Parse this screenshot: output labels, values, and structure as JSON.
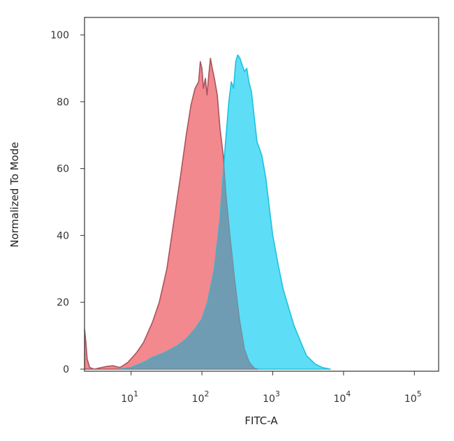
{
  "chart_data": {
    "type": "area",
    "xlabel": "FITC-A",
    "ylabel": "Normalized To Mode",
    "x_scale": "log",
    "xlim": [
      2.2,
      220000
    ],
    "ylim": [
      0,
      100
    ],
    "x_ticks": [
      {
        "base": "10",
        "exp": "1",
        "value": 10
      },
      {
        "base": "10",
        "exp": "2",
        "value": 100
      },
      {
        "base": "10",
        "exp": "3",
        "value": 1000
      },
      {
        "base": "10",
        "exp": "4",
        "value": 10000
      },
      {
        "base": "10",
        "exp": "5",
        "value": 100000
      }
    ],
    "y_ticks": [
      {
        "label": "0",
        "value": 0
      },
      {
        "label": "20",
        "value": 20
      },
      {
        "label": "40",
        "value": 40
      },
      {
        "label": "60",
        "value": 60
      },
      {
        "label": "80",
        "value": 80
      },
      {
        "label": "100",
        "value": 100
      }
    ],
    "grid": false,
    "series": [
      {
        "color": "#f07f85",
        "stroke": "#c9464c",
        "points": [
          [
            2.2,
            12
          ],
          [
            2.3,
            8
          ],
          [
            2.4,
            3
          ],
          [
            2.6,
            0.5
          ],
          [
            3,
            0
          ],
          [
            4.5,
            0.8
          ],
          [
            5.5,
            1
          ],
          [
            7,
            0.5
          ],
          [
            9,
            2
          ],
          [
            12,
            5
          ],
          [
            15,
            8
          ],
          [
            20,
            14
          ],
          [
            25,
            20
          ],
          [
            32,
            30
          ],
          [
            40,
            44
          ],
          [
            50,
            58
          ],
          [
            60,
            70
          ],
          [
            70,
            79
          ],
          [
            80,
            84
          ],
          [
            90,
            86
          ],
          [
            95,
            92
          ],
          [
            100,
            90
          ],
          [
            105,
            84
          ],
          [
            112,
            87
          ],
          [
            118,
            82
          ],
          [
            125,
            88
          ],
          [
            132,
            93
          ],
          [
            140,
            90
          ],
          [
            150,
            87
          ],
          [
            165,
            82
          ],
          [
            180,
            72
          ],
          [
            200,
            64
          ],
          [
            220,
            52
          ],
          [
            250,
            40
          ],
          [
            290,
            27
          ],
          [
            340,
            15
          ],
          [
            400,
            6
          ],
          [
            470,
            2
          ],
          [
            550,
            0.3
          ],
          [
            620,
            0
          ]
        ]
      },
      {
        "color": "#4fdbf5",
        "stroke": "#1fc1dd",
        "points": [
          [
            7,
            0
          ],
          [
            10,
            0.5
          ],
          [
            15,
            2
          ],
          [
            20,
            3.5
          ],
          [
            30,
            5
          ],
          [
            45,
            7
          ],
          [
            60,
            9
          ],
          [
            80,
            12
          ],
          [
            100,
            15
          ],
          [
            120,
            20
          ],
          [
            150,
            30
          ],
          [
            180,
            45
          ],
          [
            210,
            65
          ],
          [
            240,
            80
          ],
          [
            260,
            86
          ],
          [
            280,
            84
          ],
          [
            300,
            92
          ],
          [
            320,
            94
          ],
          [
            345,
            93
          ],
          [
            370,
            91
          ],
          [
            400,
            89
          ],
          [
            430,
            90
          ],
          [
            460,
            86
          ],
          [
            500,
            83
          ],
          [
            550,
            75
          ],
          [
            600,
            68
          ],
          [
            700,
            64
          ],
          [
            800,
            57
          ],
          [
            900,
            48
          ],
          [
            1000,
            40
          ],
          [
            1200,
            31
          ],
          [
            1400,
            24
          ],
          [
            1700,
            18
          ],
          [
            2000,
            13
          ],
          [
            2500,
            8
          ],
          [
            3000,
            4
          ],
          [
            4000,
            1.5
          ],
          [
            5000,
            0.5
          ],
          [
            6500,
            0
          ]
        ]
      }
    ],
    "overlap_color": "#6f9cb2"
  }
}
